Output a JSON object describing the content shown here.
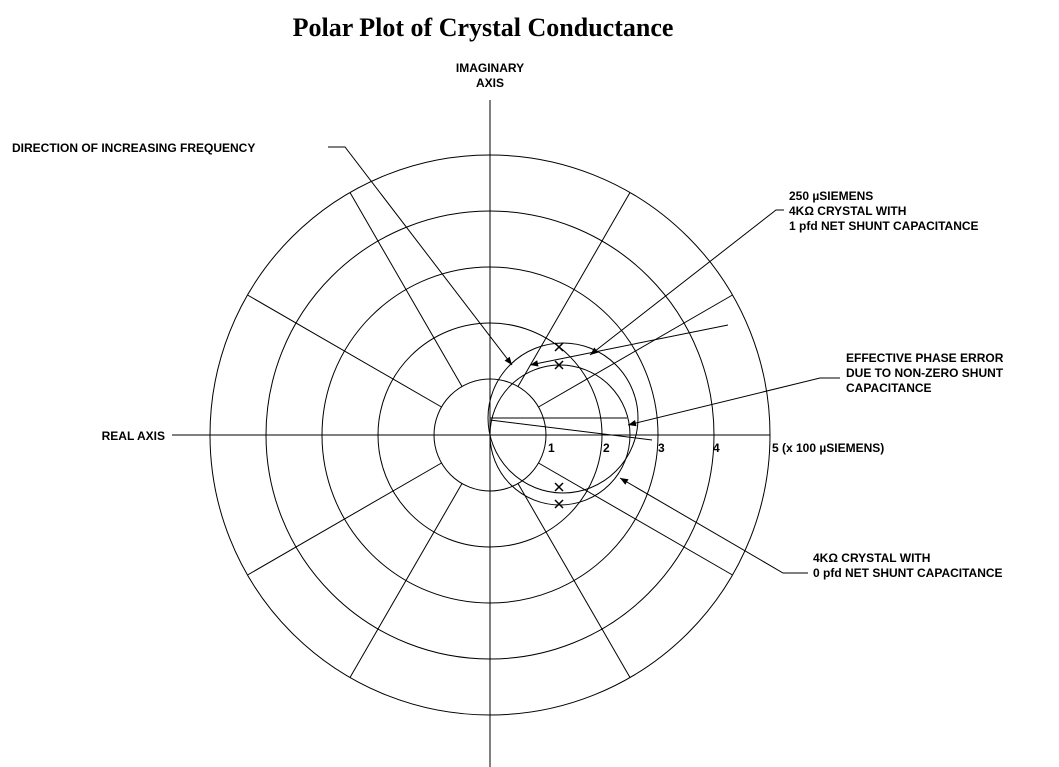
{
  "title": "Polar Plot of Crystal Conductance",
  "imaginary_axis_label": [
    "IMAGINARY",
    "AXIS"
  ],
  "real_axis_label": "REAL AXIS",
  "direction_label": "DIRECTION OF INCREASING FREQUENCY",
  "scale_labels": [
    "1",
    "2",
    "3",
    "4",
    "5 (x 100 µSIEMENS)"
  ],
  "annotations": {
    "shunt_1pf": [
      "250 µSIEMENS",
      "4KΩ CRYSTAL WITH",
      "1 pfd NET SHUNT CAPACITANCE"
    ],
    "phase_error": [
      "EFFECTIVE PHASE ERROR",
      "DUE TO NON-ZERO SHUNT",
      "CAPACITANCE"
    ],
    "shunt_0pf": [
      "4KΩ CRYSTAL WITH",
      "0 pfd NET SHUNT CAPACITANCE"
    ]
  }
}
